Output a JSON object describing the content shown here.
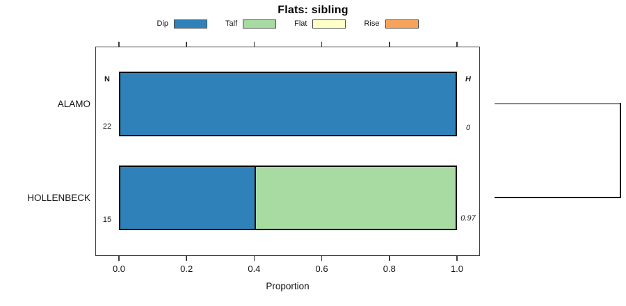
{
  "title": "Flats: sibling",
  "axis": {
    "xlabel": "Proportion",
    "tick_labels": [
      "0.0",
      "0.2",
      "0.4",
      "0.6",
      "0.8",
      "1.0"
    ]
  },
  "annotations": {
    "left_header": "N",
    "right_header": "H"
  },
  "colors": {
    "dip": "#2E82B9",
    "talf": "#A8DBA2",
    "flat": "#FFFFC8",
    "rise": "#F7A35C",
    "bar_border": "#000000",
    "frame": "#3f3f3f",
    "connector_top": "#8a8a8a",
    "connector_dark": "#1d1d1d"
  },
  "chart_data": {
    "type": "bar",
    "subtype": "horizontal_stacked_proportion",
    "title": "Flats: sibling",
    "xlabel": "Proportion",
    "xlim": [
      0,
      1
    ],
    "xticks": [
      0,
      0.2,
      0.4,
      0.6,
      0.8,
      1.0
    ],
    "grid": false,
    "legend_position": "top",
    "legend": [
      {
        "label": "Dip",
        "color": "#2E82B9"
      },
      {
        "label": "Talf",
        "color": "#A8DBA2"
      },
      {
        "label": "Flat",
        "color": "#FFFFC8"
      },
      {
        "label": "Rise",
        "color": "#F7A35C"
      }
    ],
    "categories": [
      "ALAMO",
      "HOLLENBECK"
    ],
    "series": [
      {
        "name": "Dip",
        "color": "#2E82B9",
        "values": [
          1.0,
          0.4
        ]
      },
      {
        "name": "Talf",
        "color": "#A8DBA2",
        "values": [
          0.0,
          0.6
        ]
      },
      {
        "name": "Flat",
        "color": "#FFFFC8",
        "values": [
          0.0,
          0.0
        ]
      },
      {
        "name": "Rise",
        "color": "#F7A35C",
        "values": [
          0.0,
          0.0
        ]
      }
    ],
    "row_annotations": [
      {
        "category": "ALAMO",
        "n": "22",
        "h": "0"
      },
      {
        "category": "HOLLENBECK",
        "n": "15",
        "h": "0.97"
      }
    ]
  }
}
